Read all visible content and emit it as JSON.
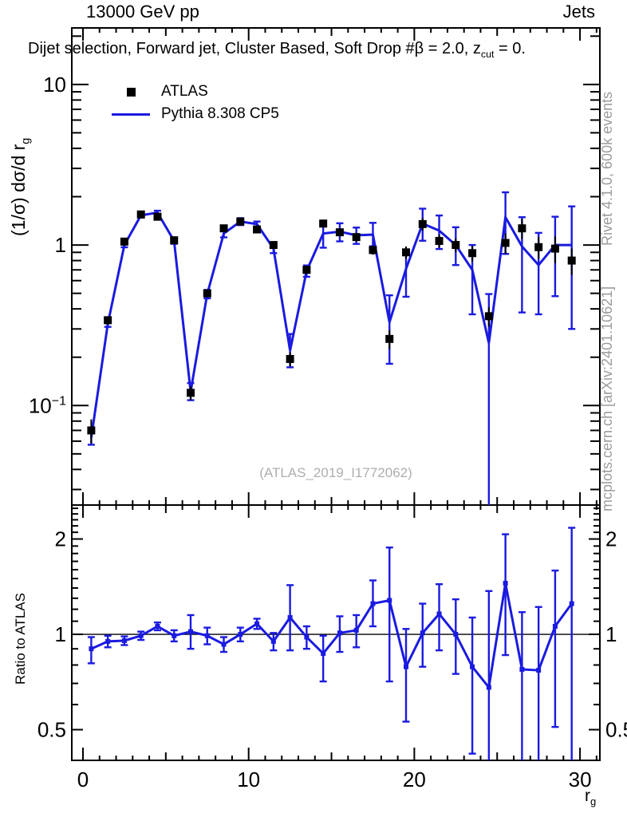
{
  "ui": {
    "header_left": "13000 GeV pp",
    "header_right": "Jets",
    "title": {
      "main": "Dijet selection, Forward jet, Cluster Based, Soft Drop #β = 2.0, z",
      "sub": "cut",
      "tail": " = 0."
    },
    "legend": {
      "items": [
        {
          "label": "ATLAS",
          "marker": "black-square"
        },
        {
          "label": "Pythia 8.308 CP5",
          "marker": "blue-line"
        }
      ]
    },
    "labels": {
      "ylabel_main": "(1/σ) dσ/d r",
      "ylabel_sub": "g",
      "ratio_ylabel": "Ratio to ATLAS",
      "xlabel_main": "r",
      "xlabel_sub": "g"
    },
    "watermark": "(ATLAS_2019_I1772062)",
    "side_text_top": "Rivet 4.1.0,  600k events",
    "side_text_bottom": "mcplots.cern.ch [arXiv:2401.10621]",
    "colors": {
      "mc_blue": "#1a1ae0",
      "data_black": "#000000",
      "gray_text": "#9c9c9c",
      "watermark_gray": "#aeaeae"
    }
  },
  "chart_data": {
    "type": "line",
    "title": "Dijet selection, Forward jet, Cluster Based, Soft Drop #β = 2.0, z_cut = 0.",
    "xlabel": "r_g",
    "ylabel": "(1/σ) dσ/d r_g",
    "ratio_ylabel": "Ratio to ATLAS",
    "x": [
      0.5,
      1.5,
      2.5,
      3.5,
      4.5,
      5.5,
      6.5,
      7.5,
      8.5,
      9.5,
      10.5,
      11.5,
      12.5,
      13.5,
      14.5,
      15.5,
      16.5,
      17.5,
      18.5,
      19.5,
      20.5,
      21.5,
      22.5,
      23.5,
      24.5,
      25.5,
      26.5,
      27.5,
      28.5,
      29.5
    ],
    "series": [
      {
        "name": "ATLAS",
        "style": "marker",
        "color": "#000000",
        "values": [
          0.07,
          0.34,
          1.05,
          1.55,
          1.5,
          1.07,
          0.12,
          0.5,
          1.27,
          1.4,
          1.25,
          1.0,
          0.195,
          0.7,
          1.36,
          1.2,
          1.12,
          0.93,
          0.26,
          0.9,
          1.35,
          1.06,
          1.0,
          0.89,
          0.36,
          1.03,
          1.27,
          0.97,
          0.95,
          0.8
        ],
        "err": [
          0.012,
          0.02,
          0.04,
          0.05,
          0.05,
          0.04,
          0.012,
          0.025,
          0.05,
          0.06,
          0.05,
          0.05,
          0.02,
          0.04,
          0.07,
          0.06,
          0.07,
          0.06,
          0.035,
          0.08,
          0.12,
          0.1,
          0.1,
          0.1,
          0.05,
          0.15,
          0.18,
          0.15,
          0.18,
          0.15
        ]
      },
      {
        "name": "Pythia 8.308 CP5",
        "style": "line",
        "color": "#1a1ae0",
        "values": [
          0.063,
          0.323,
          1.0,
          1.53,
          1.59,
          1.06,
          0.122,
          0.495,
          1.18,
          1.4,
          1.35,
          0.95,
          0.22,
          0.69,
          1.18,
          1.21,
          1.15,
          1.16,
          0.33,
          0.71,
          1.36,
          1.23,
          1.0,
          0.7,
          0.245,
          1.49,
          0.98,
          0.75,
          1.0,
          1.0
        ],
        "err_up": [
          0.006,
          0.014,
          0.032,
          0.047,
          0.045,
          0.043,
          0.016,
          0.03,
          0.064,
          0.07,
          0.05,
          0.06,
          0.059,
          0.056,
          0.163,
          0.156,
          0.134,
          0.214,
          0.156,
          0.225,
          0.324,
          0.297,
          0.29,
          0.3,
          0.25,
          0.64,
          0.51,
          0.44,
          0.5,
          0.74
        ],
        "err_dn": [
          0.006,
          0.014,
          0.032,
          0.047,
          0.045,
          0.043,
          0.014,
          0.03,
          0.064,
          0.07,
          0.05,
          0.06,
          0.047,
          0.056,
          0.218,
          0.156,
          0.134,
          0.177,
          0.148,
          0.234,
          0.297,
          0.286,
          0.25,
          0.33,
          0.24,
          0.61,
          0.6,
          0.38,
          0.52,
          0.7
        ]
      }
    ],
    "ratio": {
      "name": "Pythia 8.308 CP5 / ATLAS",
      "color": "#1a1ae0",
      "values": [
        0.9,
        0.95,
        0.955,
        0.99,
        1.06,
        0.99,
        1.02,
        0.99,
        0.93,
        1.0,
        1.08,
        0.95,
        1.13,
        0.98,
        0.87,
        1.01,
        1.03,
        1.25,
        1.28,
        0.79,
        1.01,
        1.16,
        1.0,
        0.79,
        0.68,
        1.45,
        0.775,
        0.77,
        1.06,
        1.25
      ],
      "err_up": [
        0.08,
        0.04,
        0.03,
        0.03,
        0.03,
        0.04,
        0.13,
        0.06,
        0.05,
        0.05,
        0.04,
        0.06,
        0.3,
        0.08,
        0.12,
        0.13,
        0.12,
        0.23,
        0.6,
        0.25,
        0.24,
        0.28,
        0.29,
        0.34,
        0.69,
        0.62,
        0.4,
        0.45,
        0.53,
        0.92
      ],
      "err_dn": [
        0.09,
        0.04,
        0.03,
        0.03,
        0.03,
        0.04,
        0.12,
        0.06,
        0.05,
        0.05,
        0.04,
        0.06,
        0.24,
        0.08,
        0.16,
        0.13,
        0.12,
        0.19,
        0.57,
        0.26,
        0.22,
        0.27,
        0.25,
        0.37,
        0.4,
        0.59,
        0.47,
        0.45,
        0.55,
        0.87
      ]
    },
    "axes": {
      "xlim": [
        -0.674,
        31.2
      ],
      "xticks": [
        {
          "v": 0,
          "label": "0"
        },
        {
          "v": 10,
          "label": "10"
        },
        {
          "v": 20,
          "label": "20"
        },
        {
          "v": 30,
          "label": "30"
        }
      ],
      "x_minor_step": 1,
      "x_medium_step": 5,
      "main_scale": "log",
      "main_ylim": [
        0.024,
        22.5
      ],
      "main_yticks": [
        {
          "v": 10,
          "base": "10",
          "exp": ""
        },
        {
          "v": 1,
          "base": "1",
          "exp": ""
        },
        {
          "v": 0.1,
          "base": "10",
          "exp": "−1"
        }
      ],
      "ratio_scale": "log",
      "ratio_ylim": [
        0.4,
        2.56
      ],
      "ratio_yticks": [
        {
          "v": 2,
          "label": "2"
        },
        {
          "v": 1,
          "label": "1"
        },
        {
          "v": 0.5,
          "label": "0.5"
        }
      ],
      "ratio_reference": 1,
      "grid": false,
      "legend_position": "top-left"
    }
  }
}
